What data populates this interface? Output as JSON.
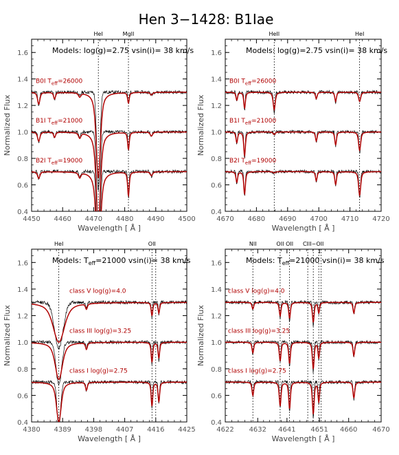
{
  "figure": {
    "title": "Hen 3−1428: B1Iae"
  },
  "colors": {
    "model": "#b00000",
    "observed": "#000000",
    "dashed_model": "#000000",
    "marker": "#000000",
    "axes": "#000000",
    "labels": "#b00000"
  },
  "chart_data": [
    {
      "type": "line",
      "panel": "top-left",
      "header": "Models: log(g)=2.75 vsin(i)= 38 km/s",
      "xlabel": "Wavelength [ Å ]",
      "ylabel": "Normalized Flux",
      "xlim": [
        4450,
        4500
      ],
      "ylim": [
        0.4,
        1.7
      ],
      "xticks": [
        4450,
        4460,
        4470,
        4480,
        4490,
        4500
      ],
      "yticks": [
        0.4,
        0.6,
        0.8,
        1.0,
        1.2,
        1.4,
        1.6
      ],
      "line_markers": [
        {
          "label": "HeI",
          "x": 4471.5
        },
        {
          "label": "MgII",
          "x": 4481.2
        }
      ],
      "series": [
        {
          "name": "B0I",
          "label_main": "B0I T",
          "label_sub": "eff",
          "label_rest": "=26000",
          "offset": 1.3,
          "lines": [
            [
              4452.3,
              0.09,
              0.5
            ],
            [
              4457.4,
              0.05,
              0.4
            ],
            [
              4465.5,
              0.03,
              0.5
            ],
            [
              4471.5,
              0.65,
              0.9
            ],
            [
              4481.2,
              0.08,
              0.35
            ],
            [
              4488.6,
              0.02,
              0.5
            ]
          ]
        },
        {
          "name": "B1I",
          "label_main": "B1I T",
          "label_sub": "eff",
          "label_rest": "=21000",
          "offset": 1.0,
          "lines": [
            [
              4452.3,
              0.07,
              0.5
            ],
            [
              4457.4,
              0.04,
              0.4
            ],
            [
              4465.5,
              0.04,
              0.5
            ],
            [
              4471.5,
              0.7,
              0.9
            ],
            [
              4481.2,
              0.13,
              0.35
            ],
            [
              4488.6,
              0.03,
              0.5
            ]
          ]
        },
        {
          "name": "B2I",
          "label_main": "B2I T",
          "label_sub": "eff",
          "label_rest": "=19000",
          "offset": 0.7,
          "lines": [
            [
              4452.3,
              0.05,
              0.5
            ],
            [
              4465.5,
              0.04,
              0.5
            ],
            [
              4471.5,
              0.72,
              0.9
            ],
            [
              4481.2,
              0.18,
              0.35
            ],
            [
              4488.6,
              0.03,
              0.5
            ]
          ]
        }
      ]
    },
    {
      "type": "line",
      "panel": "top-right",
      "header": "Models: log(g)=2.75 vsin(i)= 38 km/s",
      "xlabel": "Wavelength [ Å ]",
      "ylabel": "Normalized Flux",
      "xlim": [
        4670,
        4720
      ],
      "ylim": [
        0.4,
        1.7
      ],
      "xticks": [
        4670,
        4680,
        4690,
        4700,
        4710,
        4720
      ],
      "yticks": [
        0.4,
        0.6,
        0.8,
        1.0,
        1.2,
        1.4,
        1.6
      ],
      "line_markers": [
        {
          "label": "HeII",
          "x": 4685.7
        },
        {
          "label": "HeI",
          "x": 4713.1
        }
      ],
      "series": [
        {
          "name": "B0I",
          "label_main": "B0I T",
          "label_sub": "eff",
          "label_rest": "=26000",
          "offset": 1.3,
          "lines": [
            [
              4673.7,
              0.06,
              0.35
            ],
            [
              4676.2,
              0.12,
              0.35
            ],
            [
              4685.7,
              0.13,
              0.45
            ],
            [
              4699.2,
              0.05,
              0.35
            ],
            [
              4705.4,
              0.07,
              0.35
            ],
            [
              4713.1,
              0.07,
              0.45
            ]
          ]
        },
        {
          "name": "B1I",
          "label_main": "B1I T",
          "label_sub": "eff",
          "label_rest": "=21000",
          "offset": 1.0,
          "lines": [
            [
              4673.7,
              0.08,
              0.35
            ],
            [
              4676.2,
              0.18,
              0.35
            ],
            [
              4685.7,
              0.02,
              0.45
            ],
            [
              4699.2,
              0.07,
              0.35
            ],
            [
              4705.4,
              0.1,
              0.35
            ],
            [
              4713.1,
              0.14,
              0.45
            ]
          ]
        },
        {
          "name": "B2I",
          "label_main": "B2I T",
          "label_sub": "eff",
          "label_rest": "=19000",
          "offset": 0.7,
          "lines": [
            [
              4673.7,
              0.08,
              0.35
            ],
            [
              4676.2,
              0.17,
              0.35
            ],
            [
              4685.7,
              0.01,
              0.45
            ],
            [
              4699.2,
              0.07,
              0.35
            ],
            [
              4705.4,
              0.1,
              0.35
            ],
            [
              4713.1,
              0.18,
              0.45
            ]
          ]
        }
      ]
    },
    {
      "type": "line",
      "panel": "bottom-left",
      "header_main": "Models: T",
      "header_sub": "eff",
      "header_rest": "=21000 vsin(i)= 38 km/s",
      "xlabel": "Wavelength [ Å ]",
      "ylabel": "Normalized Flux",
      "xlim": [
        4380,
        4425
      ],
      "ylim": [
        0.4,
        1.7
      ],
      "xticks": [
        4380,
        4389,
        4398,
        4407,
        4416,
        4425
      ],
      "yticks": [
        0.4,
        0.6,
        0.8,
        1.0,
        1.2,
        1.4,
        1.6
      ],
      "line_markers": [
        {
          "label": "HeI",
          "x": 4387.9
        },
        {
          "label": "OII",
          "x": 4414.9
        },
        {
          "label": "",
          "x": 4416.0
        }
      ],
      "series": [
        {
          "name": "class V log(g)=4.0",
          "label": "class V log(g)=4.0",
          "offset": 1.3,
          "lines": [
            [
              4387.9,
              0.3,
              2.2
            ],
            [
              4395.9,
              0.04,
              0.35
            ],
            [
              4414.9,
              0.1,
              0.3
            ],
            [
              4416.9,
              0.08,
              0.3
            ]
          ]
        },
        {
          "name": "class III log(g)=3.25",
          "label": "class III log(g)=3.25",
          "offset": 1.0,
          "lines": [
            [
              4387.9,
              0.28,
              1.4
            ],
            [
              4395.9,
              0.05,
              0.35
            ],
            [
              4414.9,
              0.15,
              0.3
            ],
            [
              4416.9,
              0.12,
              0.3
            ]
          ]
        },
        {
          "name": "class I log(g)=2.75",
          "label": "class I log(g)=2.75",
          "offset": 0.7,
          "lines": [
            [
              4387.9,
              0.3,
              0.9
            ],
            [
              4395.9,
              0.06,
              0.35
            ],
            [
              4414.9,
              0.18,
              0.3
            ],
            [
              4416.9,
              0.15,
              0.3
            ]
          ]
        }
      ]
    },
    {
      "type": "line",
      "panel": "bottom-right",
      "header_main": "Models: T",
      "header_sub": "eff",
      "header_rest": "=21000 vsin(i)= 38 km/s",
      "xlabel": "Wavelength [ Å ]",
      "ylabel": "Normalized Flux",
      "xlim": [
        4622,
        4670
      ],
      "ylim": [
        0.4,
        1.7
      ],
      "xticks": [
        4622,
        4632,
        4641,
        4651,
        4660,
        4670
      ],
      "yticks": [
        0.4,
        0.6,
        0.8,
        1.0,
        1.2,
        1.4,
        1.6
      ],
      "line_markers": [
        {
          "label": "NII",
          "x": 4630.5
        },
        {
          "label": "OII",
          "x": 4638.9
        },
        {
          "label": "OII",
          "x": 4641.8
        },
        {
          "label": "CIII−OII",
          "x": 4649.1
        },
        {
          "label": "",
          "x": 4647.4
        },
        {
          "label": "",
          "x": 4650.8
        },
        {
          "label": "",
          "x": 4651.5
        }
      ],
      "series": [
        {
          "name": "class V log(g)=4.0",
          "label": "class V log(g)=4.0",
          "offset": 1.3,
          "lines": [
            [
              4630.5,
              0.05,
              0.35
            ],
            [
              4638.9,
              0.1,
              0.35
            ],
            [
              4641.8,
              0.12,
              0.35
            ],
            [
              4649.1,
              0.15,
              0.35
            ],
            [
              4650.8,
              0.08,
              0.3
            ],
            [
              4661.6,
              0.08,
              0.35
            ]
          ]
        },
        {
          "name": "class III log(g)=3.25",
          "label": "class III log(g)=3.25",
          "offset": 1.0,
          "lines": [
            [
              4630.5,
              0.08,
              0.35
            ],
            [
              4638.9,
              0.14,
              0.35
            ],
            [
              4641.8,
              0.16,
              0.35
            ],
            [
              4649.1,
              0.2,
              0.35
            ],
            [
              4650.8,
              0.12,
              0.3
            ],
            [
              4661.6,
              0.1,
              0.35
            ]
          ]
        },
        {
          "name": "class I log(g)=2.75",
          "label": "class I log(g)=2.75",
          "offset": 0.7,
          "lines": [
            [
              4630.5,
              0.1,
              0.35
            ],
            [
              4638.9,
              0.18,
              0.35
            ],
            [
              4641.8,
              0.2,
              0.35
            ],
            [
              4649.1,
              0.24,
              0.35
            ],
            [
              4650.8,
              0.15,
              0.3
            ],
            [
              4661.6,
              0.12,
              0.35
            ]
          ]
        }
      ]
    }
  ]
}
